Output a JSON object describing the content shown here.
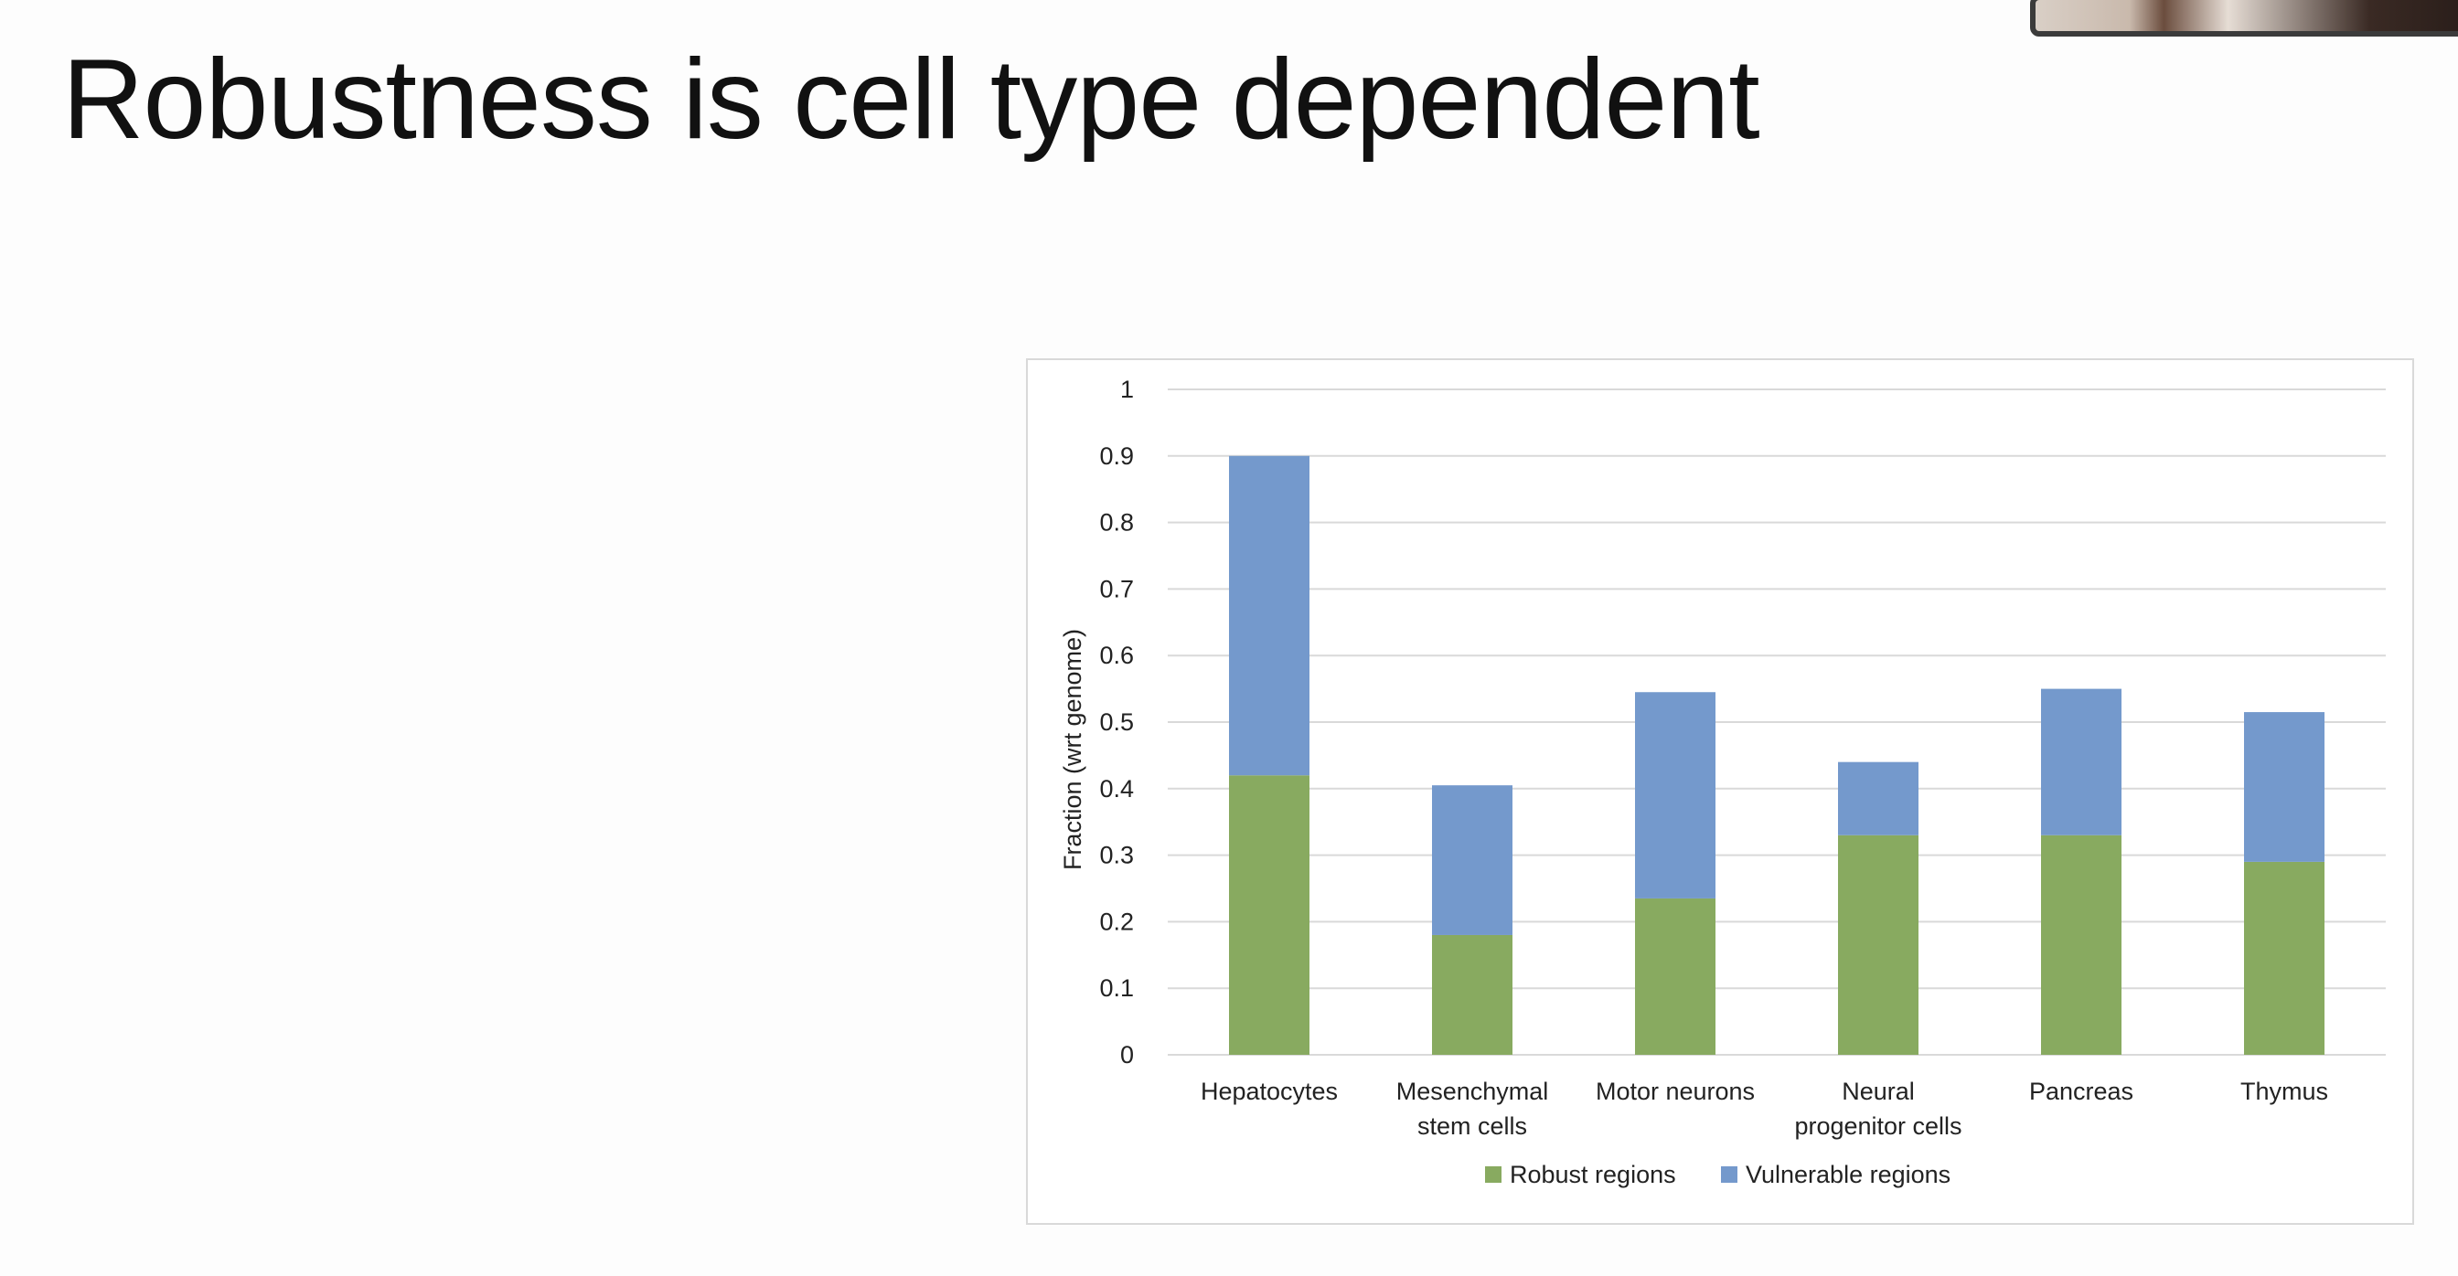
{
  "slide": {
    "title": "Robustness is cell type dependent"
  },
  "colors": {
    "robust": "#88aa60",
    "vulnerable": "#7499cc",
    "grid": "#d9d9d9"
  },
  "chart_data": {
    "type": "bar",
    "stacked": true,
    "categories": [
      [
        "Hepatocytes"
      ],
      [
        "Mesenchymal",
        "stem cells"
      ],
      [
        "Motor neurons"
      ],
      [
        "Neural",
        "progenitor cells"
      ],
      [
        "Pancreas"
      ],
      [
        "Thymus"
      ]
    ],
    "series": [
      {
        "name": "Robust regions",
        "values": [
          0.42,
          0.18,
          0.235,
          0.33,
          0.33,
          0.29
        ]
      },
      {
        "name": "Vulnerable regions",
        "values": [
          0.48,
          0.225,
          0.31,
          0.11,
          0.22,
          0.225
        ]
      }
    ],
    "ylabel": "Fraction (wrt genome)",
    "xlabel": "",
    "ylim": [
      0,
      1
    ],
    "yticks": [
      "0",
      "0.1",
      "0.2",
      "0.3",
      "0.4",
      "0.5",
      "0.6",
      "0.7",
      "0.8",
      "0.9",
      "1"
    ],
    "grid": true,
    "legend": "bottom"
  }
}
